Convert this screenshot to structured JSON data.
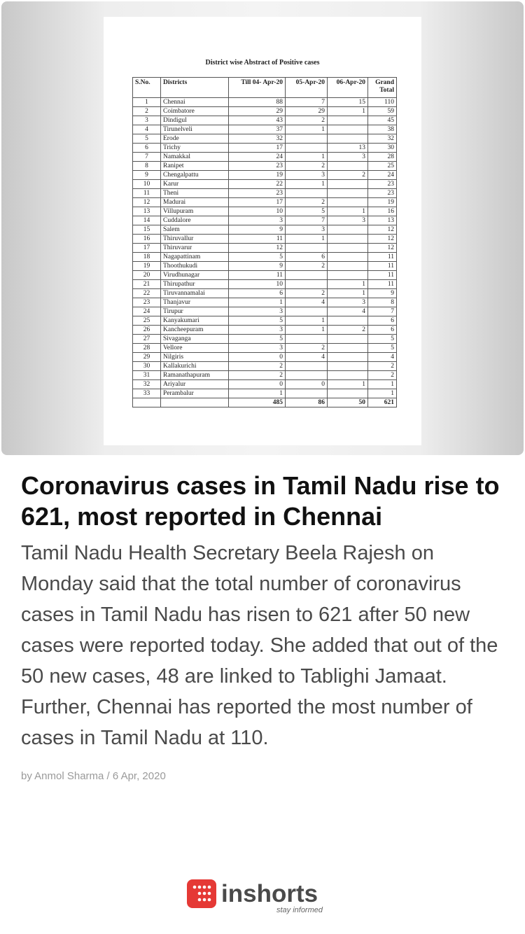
{
  "image": {
    "title": "District wise Abstract of Positive cases",
    "table": {
      "header": [
        "S.No.",
        "Districts",
        "Till 04- Apr-20",
        "05-Apr-20",
        "06-Apr-20",
        "Grand Total"
      ],
      "rows": [
        [
          "1",
          "Chennai",
          "88",
          "7",
          "15",
          "110"
        ],
        [
          "2",
          "Coimbatore",
          "29",
          "29",
          "1",
          "59"
        ],
        [
          "3",
          "Dindigul",
          "43",
          "2",
          null,
          "45"
        ],
        [
          "4",
          "Tirunelveli",
          "37",
          "1",
          null,
          "38"
        ],
        [
          "5",
          "Erode",
          "32",
          null,
          null,
          "32"
        ],
        [
          "6",
          "Trichy",
          "17",
          null,
          "13",
          "30"
        ],
        [
          "7",
          "Namakkal",
          "24",
          "1",
          "3",
          "28"
        ],
        [
          "8",
          "Ranipet",
          "23",
          "2",
          null,
          "25"
        ],
        [
          "9",
          "Chengalpattu",
          "19",
          "3",
          "2",
          "24"
        ],
        [
          "10",
          "Karur",
          "22",
          "1",
          null,
          "23"
        ],
        [
          "11",
          "Theni",
          "23",
          null,
          null,
          "23"
        ],
        [
          "12",
          "Madurai",
          "17",
          "2",
          null,
          "19"
        ],
        [
          "13",
          "Villupuram",
          "10",
          "5",
          "1",
          "16"
        ],
        [
          "14",
          "Cuddalore",
          "3",
          "7",
          "3",
          "13"
        ],
        [
          "15",
          "Salem",
          "9",
          "3",
          null,
          "12"
        ],
        [
          "16",
          "Thiruvallur",
          "11",
          "1",
          null,
          "12"
        ],
        [
          "17",
          "Thiruvarur",
          "12",
          null,
          null,
          "12"
        ],
        [
          "18",
          "Nagapattinam",
          "5",
          "6",
          null,
          "11"
        ],
        [
          "19",
          "Thoothukudi",
          "9",
          "2",
          null,
          "11"
        ],
        [
          "20",
          "Virudhunagar",
          "11",
          null,
          null,
          "11"
        ],
        [
          "21",
          "Thirupathur",
          "10",
          null,
          "1",
          "11"
        ],
        [
          "22",
          "Tiruvannamalai",
          "6",
          "2",
          "1",
          "9"
        ],
        [
          "23",
          "Thanjavur",
          "1",
          "4",
          "3",
          "8"
        ],
        [
          "24",
          "Tirupur",
          "3",
          null,
          "4",
          "7"
        ],
        [
          "25",
          "Kanyakumari",
          "5",
          "1",
          null,
          "6"
        ],
        [
          "26",
          "Kancheepuram",
          "3",
          "1",
          "2",
          "6"
        ],
        [
          "27",
          "Sivaganga",
          "5",
          null,
          null,
          "5"
        ],
        [
          "28",
          "Vellore",
          "3",
          "2",
          null,
          "5"
        ],
        [
          "29",
          "Nilgiris",
          "0",
          "4",
          null,
          "4"
        ],
        [
          "30",
          "Kallakurichi",
          "2",
          null,
          null,
          "2"
        ],
        [
          "31",
          "Ramanathapuram",
          "2",
          null,
          null,
          "2"
        ],
        [
          "32",
          "Ariyalur",
          "0",
          "0",
          "1",
          "1"
        ],
        [
          "33",
          "Perambalur",
          "1",
          null,
          null,
          "1"
        ],
        [
          null,
          null,
          "485",
          "86",
          "50",
          "621"
        ]
      ]
    }
  },
  "headline": "Coronavirus cases in Tamil Nadu rise to 621, most reported in Chennai",
  "body": "Tamil Nadu Health Secretary Beela Rajesh on Monday said that the total number of coronavirus cases in Tamil Nadu has risen to 621 after 50 new cases were reported today. She added that out of the 50 new cases, 48 are linked to Tablighi Jamaat. Further, Chennai has reported the most number of cases in Tamil Nadu at 110.",
  "byline": "by Anmol Sharma / 6 Apr, 2020",
  "logo": {
    "brand": "inshorts",
    "tagline": "stay informed"
  }
}
